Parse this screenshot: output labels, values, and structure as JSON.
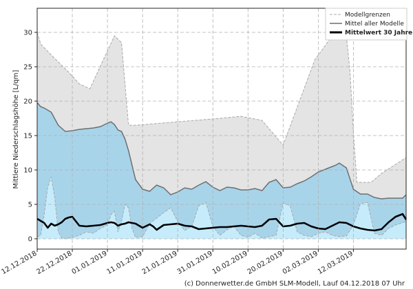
{
  "chart_data": {
    "type": "area",
    "ylabel": "Mittlere Niederschlagshöhe [L/qm]",
    "footer": "(c) Donnerwetter.de GmbH SLM-Modell, Lauf 04.12.2018 07 Uhr",
    "ylim": [
      -1.5,
      33.5
    ],
    "yticks": [
      0,
      5,
      10,
      15,
      20,
      25,
      30
    ],
    "xlim": [
      0,
      105
    ],
    "x_tick_labels": [
      "12.12.2018",
      "22.12.2018",
      "01.01.2019",
      "11.01.2019",
      "21.01.2019",
      "31.01.2019",
      "10.02.2019",
      "20.02.2019",
      "02.03.2019",
      "12.03.2019"
    ],
    "x_tick_pos": [
      0,
      10,
      20,
      30,
      40,
      50,
      60,
      70,
      80,
      90
    ],
    "grid": true,
    "legend_position": "top-right",
    "legend": [
      "Modellgrenzen",
      "Mittel aller Modelle",
      "Mittelwert 30 Jahre"
    ],
    "colors": {
      "envelope": "#e4e4e4",
      "envelope_line": "#a8a8a8",
      "mean_fill": "#a8d4ea",
      "mean_line": "#6e6e6e",
      "climate_fill": "#c6ecfb",
      "climate_line": "#000000"
    },
    "upper_bound": {
      "x": [
        0,
        1,
        5,
        9,
        12,
        15,
        22,
        24,
        26,
        28,
        52,
        58,
        64,
        70,
        79,
        84,
        86,
        88,
        89,
        90,
        91,
        93,
        95,
        98,
        105
      ],
      "y": [
        30,
        28.3,
        26.2,
        24.2,
        22.5,
        21.8,
        29.5,
        28.5,
        16.5,
        16.5,
        17.5,
        17.8,
        17.2,
        13.6,
        26,
        29.5,
        29.5,
        29.5,
        24.5,
        15.5,
        8.2,
        8.2,
        8.2,
        9.5,
        11.8
      ]
    },
    "lower_bound": {
      "x": [
        0,
        1,
        2,
        3,
        4,
        5,
        6,
        7,
        8,
        10,
        12,
        14,
        16,
        18,
        20,
        21,
        22,
        23,
        24,
        25,
        26,
        27,
        28,
        30,
        32,
        34,
        36,
        38,
        40,
        42,
        44,
        46,
        48,
        50,
        52,
        54,
        56,
        58,
        60,
        62,
        64,
        66,
        68,
        70,
        72,
        74,
        76,
        78,
        80,
        82,
        84,
        86,
        88,
        90,
        92,
        94,
        96,
        98,
        100,
        102,
        105
      ],
      "y": [
        0.3,
        0.5,
        3.5,
        7.5,
        9,
        6,
        1,
        0.1,
        0,
        0.2,
        0.5,
        1,
        0.8,
        1.5,
        2,
        3.5,
        4,
        1,
        2.5,
        5,
        4.5,
        1.5,
        0.2,
        0.3,
        2.2,
        3,
        3.8,
        4.5,
        2.5,
        1.2,
        1.8,
        4.8,
        5.3,
        1.8,
        0.5,
        1.3,
        1.8,
        0.5,
        0.2,
        0.8,
        0.1,
        0.3,
        0.5,
        5.2,
        4.8,
        1,
        0.5,
        0.3,
        0.8,
        1,
        0.5,
        0.3,
        0.4,
        2,
        5.1,
        5.3,
        0.8,
        0.5,
        1.5,
        2,
        2.5
      ]
    },
    "model_mean": {
      "x": [
        0,
        1,
        2,
        4,
        6,
        8,
        10,
        12,
        14,
        16,
        18,
        20,
        21,
        22,
        23,
        24,
        25,
        26,
        28,
        30,
        32,
        34,
        36,
        38,
        40,
        42,
        44,
        46,
        48,
        50,
        52,
        54,
        56,
        58,
        60,
        62,
        64,
        66,
        68,
        70,
        72,
        74,
        76,
        78,
        80,
        82,
        84,
        85,
        86,
        88,
        90,
        92,
        94,
        96,
        98,
        100,
        102,
        104,
        105
      ],
      "y": [
        19.8,
        19.2,
        19.0,
        18.4,
        16.5,
        15.6,
        15.7,
        15.9,
        16.0,
        16.1,
        16.3,
        16.8,
        17.0,
        16.6,
        15.8,
        15.6,
        14.5,
        12.8,
        8.6,
        7.2,
        6.9,
        7.8,
        7.4,
        6.4,
        6.8,
        7.4,
        7.2,
        7.8,
        8.3,
        7.5,
        7.0,
        7.5,
        7.4,
        7.1,
        7.1,
        7.3,
        7.0,
        8.2,
        8.6,
        7.4,
        7.5,
        8.0,
        8.4,
        9.0,
        9.7,
        10.1,
        10.5,
        10.7,
        11.0,
        10.3,
        7.2,
        6.5,
        6.5,
        6.0,
        5.8,
        5.9,
        5.9,
        5.9,
        6.4
      ]
    },
    "climate_mean": {
      "x": [
        0,
        2,
        3,
        4,
        5,
        6,
        7,
        8,
        9,
        10,
        12,
        14,
        16,
        18,
        20,
        21,
        22,
        23,
        24,
        25,
        26,
        28,
        30,
        32,
        33,
        34,
        36,
        38,
        40,
        42,
        44,
        46,
        48,
        50,
        52,
        54,
        56,
        58,
        60,
        62,
        64,
        66,
        68,
        70,
        72,
        74,
        76,
        78,
        80,
        82,
        84,
        86,
        88,
        90,
        92,
        94,
        96,
        98,
        100,
        102,
        104,
        105
      ],
      "y": [
        2.9,
        2.3,
        1.6,
        2.2,
        1.9,
        2.1,
        2.4,
        2.9,
        3.1,
        3.2,
        1.9,
        1.8,
        1.9,
        2.0,
        2.3,
        2.4,
        2.3,
        1.9,
        2.1,
        2.2,
        2.4,
        2.2,
        1.6,
        2.1,
        1.8,
        1.3,
        2.0,
        2.1,
        2.2,
        1.9,
        1.8,
        1.4,
        1.5,
        1.6,
        1.7,
        1.7,
        1.8,
        1.9,
        1.8,
        1.7,
        1.9,
        2.8,
        2.9,
        1.8,
        1.9,
        2.2,
        2.3,
        1.8,
        1.5,
        1.4,
        1.9,
        2.4,
        2.3,
        1.8,
        1.5,
        1.3,
        1.2,
        1.4,
        2.4,
        3.2,
        3.6,
        2.8
      ]
    }
  }
}
